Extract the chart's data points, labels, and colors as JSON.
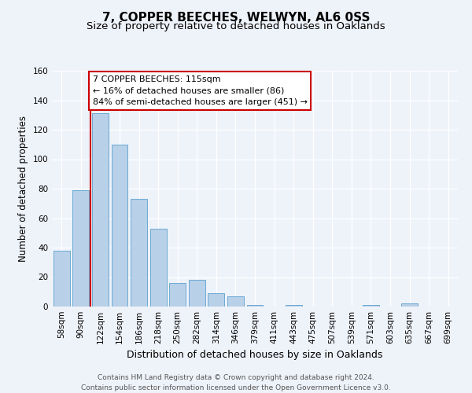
{
  "title": "7, COPPER BEECHES, WELWYN, AL6 0SS",
  "subtitle": "Size of property relative to detached houses in Oaklands",
  "xlabel": "Distribution of detached houses by size in Oaklands",
  "ylabel": "Number of detached properties",
  "categories": [
    "58sqm",
    "90sqm",
    "122sqm",
    "154sqm",
    "186sqm",
    "218sqm",
    "250sqm",
    "282sqm",
    "314sqm",
    "346sqm",
    "379sqm",
    "411sqm",
    "443sqm",
    "475sqm",
    "507sqm",
    "539sqm",
    "571sqm",
    "603sqm",
    "635sqm",
    "667sqm",
    "699sqm"
  ],
  "values": [
    38,
    79,
    131,
    110,
    73,
    53,
    16,
    18,
    9,
    7,
    1,
    0,
    1,
    0,
    0,
    0,
    1,
    0,
    2,
    0,
    0
  ],
  "bar_color": "#b8d0e8",
  "bar_edge_color": "#6aaad4",
  "red_line_x": 1.5,
  "annotation_text": "7 COPPER BEECHES: 115sqm\n← 16% of detached houses are smaller (86)\n84% of semi-detached houses are larger (451) →",
  "annotation_box_color": "#ffffff",
  "annotation_box_edge_color": "#cc0000",
  "red_line_color": "#cc0000",
  "ylim": [
    0,
    160
  ],
  "yticks": [
    0,
    20,
    40,
    60,
    80,
    100,
    120,
    140,
    160
  ],
  "background_color": "#eef2f9",
  "footnote": "Contains HM Land Registry data © Crown copyright and database right 2024.\nContains public sector information licensed under the Open Government Licence v3.0.",
  "title_fontsize": 11,
  "subtitle_fontsize": 9.5,
  "xlabel_fontsize": 9,
  "ylabel_fontsize": 8.5,
  "tick_fontsize": 7.5,
  "annotation_fontsize": 8,
  "footnote_fontsize": 6.5
}
